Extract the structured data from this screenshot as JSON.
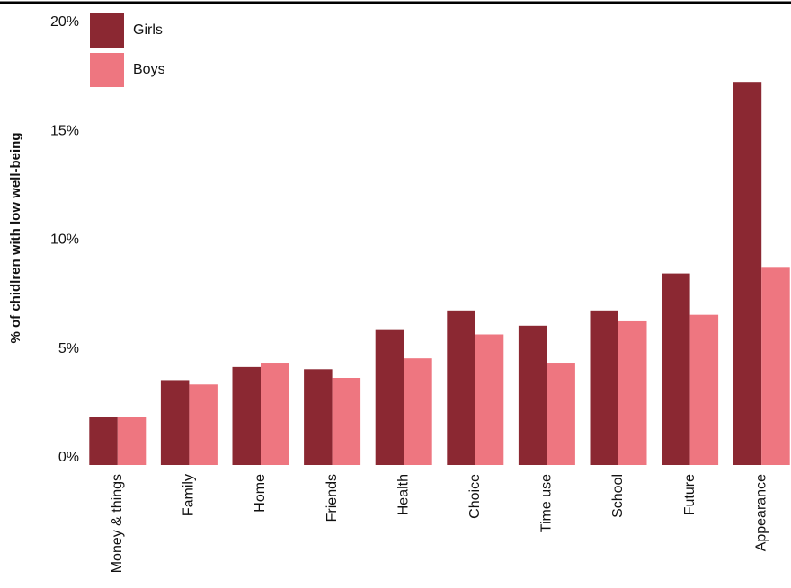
{
  "chart_data": {
    "type": "bar",
    "y_label": "% of chidlren with low well-being",
    "categories": [
      "Money & things",
      "Family",
      "Home",
      "Friends",
      "Health",
      "Choice",
      "Time use",
      "School",
      "Future",
      "Appearance"
    ],
    "series": [
      {
        "name": "Girls",
        "color": "#8b2832",
        "values": [
          2.2,
          3.9,
          4.5,
          4.4,
          6.2,
          7.1,
          6.4,
          7.1,
          8.8,
          17.6
        ]
      },
      {
        "name": "Boys",
        "color": "#ee7680",
        "values": [
          2.2,
          3.7,
          4.7,
          4.0,
          4.9,
          6.0,
          4.7,
          6.6,
          6.9,
          9.1
        ]
      }
    ],
    "ylim": [
      0,
      20
    ],
    "yticks": [
      {
        "value": 0,
        "label": "0%"
      },
      {
        "value": 5,
        "label": "5%"
      },
      {
        "value": 10,
        "label": "10%"
      },
      {
        "value": 15,
        "label": "15%"
      },
      {
        "value": 20,
        "label": "20%"
      }
    ],
    "grid": false
  }
}
